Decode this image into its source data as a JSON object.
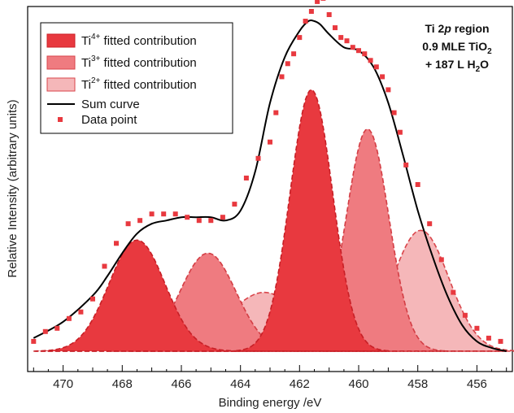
{
  "chart_data": {
    "type": "area",
    "xlabel": "Binding energy /eV",
    "ylabel": "Relative Intensity (arbitrary units)",
    "xlim": [
      471.2,
      454.8
    ],
    "ylim": [
      0,
      1.05
    ],
    "x_ticks": [
      470,
      468,
      466,
      464,
      462,
      460,
      458,
      456
    ],
    "y_tick_labels": false,
    "grid": false,
    "legend_position": "top-left",
    "annotation": {
      "line1_pre": "Ti 2",
      "line1_italic": "p",
      "line1_post": " region",
      "line2_pre": "0.9 MLE TiO",
      "line2_sub": "2",
      "line3_pre": "+ 187 L H",
      "line3_sub": "2",
      "line3_post": "O"
    },
    "legend": [
      {
        "pre": "Ti",
        "sup": "4+",
        "post": " fitted contribution",
        "kind": "fill",
        "color": "#e8393f"
      },
      {
        "pre": "Ti",
        "sup": "3+",
        "post": " fitted contribution",
        "kind": "fill",
        "color": "#ef7b80"
      },
      {
        "pre": "Ti",
        "sup": "2+",
        "post": " fitted contribution",
        "kind": "fill",
        "color": "#f5b7b9"
      },
      {
        "pre": "Sum curve",
        "sup": "",
        "post": "",
        "kind": "line",
        "color": "#000000"
      },
      {
        "pre": "Data point",
        "sup": "",
        "post": "",
        "kind": "marker",
        "color": "#e8393f"
      }
    ],
    "baseline": 0.02,
    "series": [
      {
        "name": "Ti4+ fitted contribution",
        "color": "#e8393f",
        "peaks": [
          {
            "center": 467.5,
            "amp": 0.34,
            "sigma": 0.95
          },
          {
            "center": 461.6,
            "amp": 0.8,
            "sigma": 0.72
          }
        ]
      },
      {
        "name": "Ti3+ fitted contribution",
        "color": "#ef7b80",
        "peaks": [
          {
            "center": 465.1,
            "amp": 0.3,
            "sigma": 0.95
          },
          {
            "center": 459.7,
            "amp": 0.68,
            "sigma": 0.72
          }
        ]
      },
      {
        "name": "Ti2+ fitted contribution",
        "color": "#f5b7b9",
        "peaks": [
          {
            "center": 463.2,
            "amp": 0.18,
            "sigma": 1.25
          },
          {
            "center": 457.9,
            "amp": 0.37,
            "sigma": 0.95
          }
        ]
      }
    ],
    "sum_curve": {
      "name": "Sum curve",
      "x": [
        471.0,
        470.0,
        469.0,
        468.5,
        468.0,
        467.5,
        467.0,
        466.5,
        466.0,
        465.5,
        465.0,
        464.5,
        464.0,
        463.5,
        463.0,
        462.5,
        462.0,
        461.7,
        461.5,
        461.3,
        461.0,
        460.5,
        460.0,
        459.5,
        459.0,
        458.5,
        458.0,
        457.5,
        457.0,
        456.5,
        456.0,
        455.5,
        455.0
      ],
      "y": [
        0.06,
        0.11,
        0.19,
        0.25,
        0.32,
        0.38,
        0.41,
        0.42,
        0.43,
        0.43,
        0.43,
        0.42,
        0.45,
        0.57,
        0.78,
        0.92,
        1.0,
        1.03,
        1.03,
        1.02,
        0.99,
        0.95,
        0.94,
        0.89,
        0.78,
        0.62,
        0.45,
        0.31,
        0.19,
        0.1,
        0.05,
        0.03,
        0.02
      ]
    },
    "data_points": {
      "name": "Data point",
      "x": [
        471.0,
        470.6,
        470.2,
        469.8,
        469.4,
        469.0,
        468.6,
        468.2,
        467.8,
        467.4,
        467.0,
        466.6,
        466.2,
        465.8,
        465.4,
        465.0,
        464.6,
        464.2,
        463.8,
        463.4,
        463.0,
        462.8,
        462.6,
        462.4,
        462.2,
        462.0,
        461.8,
        461.6,
        461.4,
        461.2,
        461.0,
        460.8,
        460.6,
        460.4,
        460.2,
        460.0,
        459.8,
        459.6,
        459.4,
        459.2,
        459.0,
        458.8,
        458.6,
        458.4,
        458.0,
        457.6,
        457.2,
        456.8,
        456.4,
        456.0,
        455.6,
        455.2
      ],
      "y": [
        0.05,
        0.08,
        0.09,
        0.12,
        0.14,
        0.18,
        0.28,
        0.35,
        0.41,
        0.42,
        0.44,
        0.44,
        0.44,
        0.43,
        0.42,
        0.42,
        0.43,
        0.47,
        0.55,
        0.61,
        0.66,
        0.75,
        0.86,
        0.9,
        0.93,
        0.98,
        1.03,
        1.06,
        1.09,
        1.1,
        1.05,
        1.01,
        0.98,
        0.97,
        0.95,
        0.94,
        0.93,
        0.91,
        0.89,
        0.86,
        0.82,
        0.75,
        0.69,
        0.59,
        0.53,
        0.41,
        0.3,
        0.2,
        0.13,
        0.09,
        0.06,
        0.05
      ]
    }
  }
}
